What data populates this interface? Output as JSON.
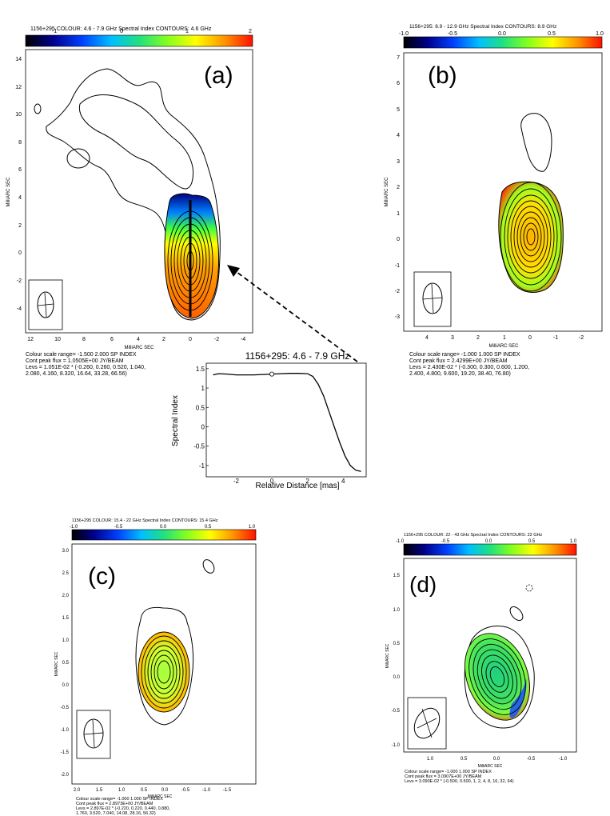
{
  "panels": {
    "a": {
      "header": "1156+295  COLOUR: 4.6 - 7.9 GHz Spectral Index  CONTOURS: 4.6 GHz",
      "label": "(a)",
      "colorbar_ticks": [
        "-1",
        "0",
        "1",
        "2"
      ],
      "ylabel": "MilliARC SEC",
      "xlabel": "MilliARC SEC",
      "yticks": [
        "14",
        "12",
        "10",
        "8",
        "6",
        "4",
        "2",
        "0",
        "-2",
        "-4"
      ],
      "xticks": [
        "12",
        "10",
        "8",
        "6",
        "4",
        "2",
        "0",
        "-2",
        "-4"
      ],
      "caption": "Colour scale range= -1.500 2.000 SP INDEX\nCont peak flux = 1.0505E+00 JY/BEAM\nLevs = 1.051E-02 * (-0.260, 0.260, 0.520, 1.040,\n2.080, 4.160, 8.320, 16.64, 33.28, 66.56)"
    },
    "b": {
      "header": "1156+295: 8.9 - 12.9 GHz Spectral Index  CONTOURS: 8.9 GHz",
      "label": "(b)",
      "colorbar_ticks": [
        "-1.0",
        "-0.5",
        "0.0",
        "0.5",
        "1.0"
      ],
      "ylabel": "MilliARC SEC",
      "xlabel": "MilliARC SEC",
      "yticks": [
        "7",
        "6",
        "5",
        "4",
        "3",
        "2",
        "1",
        "0",
        "-1",
        "-2",
        "-3"
      ],
      "xticks": [
        "4",
        "3",
        "2",
        "1",
        "0",
        "-1",
        "-2"
      ],
      "caption": "Colour scale range= -1.000 1.000 SP INDEX\nCont peak flux = 2.4299E+00 JY/BEAM\nLevs = 2.430E-02 * (-0.300, 0.300, 0.600, 1.200,\n2.400, 4.800, 9.600, 19.20, 38.40, 76.80)"
    },
    "c": {
      "header": "1156+295  COLOUR: 15.4 - 22 GHz Spectral Index  CONTOURS: 15.4 GHz",
      "label": "(c)",
      "colorbar_ticks": [
        "-1.0",
        "-0.5",
        "0.0",
        "0.5",
        "1.0"
      ],
      "ylabel": "MilliARC SEC",
      "xlabel": "MilliARC SEC",
      "yticks": [
        "3.0",
        "2.5",
        "2.0",
        "1.5",
        "1.0",
        "0.5",
        "0.0",
        "-0.5",
        "-1.0",
        "-1.5",
        "-2.0"
      ],
      "xticks": [
        "2.0",
        "1.5",
        "1.0",
        "0.5",
        "0.0",
        "-0.5",
        "-1.0",
        "-1.5"
      ],
      "caption": "Colour scale range= -1.000 1.000 SP INDEX\nCont peak flux = 2.8973E+00 JY/BEAM\nLevs = 2.897E-02 * (-0.220, 0.220, 0.440, 0.880,\n1.760, 3.520, 7.040, 14.08, 28.16, 56.32)"
    },
    "d": {
      "header": "1156+295  COLOUR: 22 - 43 GHz Spectral Index  CONTOURS: 22 GHz",
      "label": "(d)",
      "colorbar_ticks": [
        "-1.0",
        "-0.5",
        "0.0",
        "0.5",
        "1.0"
      ],
      "ylabel": "MilliARC SEC",
      "xlabel": "MilliARC SEC",
      "yticks": [
        "1.5",
        "1.0",
        "0.5",
        "0.0",
        "-0.5",
        "-1.0"
      ],
      "xticks": [
        "1.0",
        "0.5",
        "0.0",
        "-0.5",
        "-1.0"
      ],
      "caption": "Colour scale range= -1.000 1.000 SP INDEX\nCont peak flux = 3.0907E+00 JY/BEAM\nLevs = 3.090E-02 * (-0.500, 0.500, 1, 2, 4, 8, 16, 32, 64)"
    }
  },
  "inset": {
    "title": "1156+295: 4.6 - 7.9 GHz",
    "xlabel": "Relative Distance [mas]",
    "ylabel": "Spectral Index"
  },
  "chart_data": {
    "type": "line",
    "title": "1156+295: 4.6 - 7.9 GHz",
    "xlabel": "Relative Distance [mas]",
    "ylabel": "Spectral Index",
    "xlim": [
      -3.5,
      5.2
    ],
    "ylim": [
      -1.25,
      1.6
    ],
    "xticks": [
      -2,
      0,
      2,
      4
    ],
    "yticks": [
      1.5,
      1,
      0.5,
      0,
      -0.5,
      -1
    ],
    "x": [
      -3.3,
      -3.0,
      -2.5,
      -2.0,
      -1.5,
      -1.0,
      -0.5,
      0.0,
      0.5,
      1.0,
      1.5,
      2.0,
      2.3,
      2.6,
      2.9,
      3.2,
      3.5,
      3.8,
      4.1,
      4.4,
      4.7,
      5.0
    ],
    "values": [
      1.34,
      1.37,
      1.36,
      1.34,
      1.34,
      1.34,
      1.35,
      1.36,
      1.37,
      1.38,
      1.38,
      1.37,
      1.3,
      1.1,
      0.8,
      0.4,
      0.0,
      -0.4,
      -0.75,
      -1.0,
      -1.12,
      -1.15
    ],
    "marker": {
      "x": 0.0,
      "y": 1.36
    }
  },
  "colors": {
    "colormap": [
      "#000000",
      "#000080",
      "#0000ff",
      "#00a0ff",
      "#00e0a0",
      "#40ff40",
      "#c0ff00",
      "#ffff00",
      "#ffa000",
      "#ff2000"
    ]
  }
}
